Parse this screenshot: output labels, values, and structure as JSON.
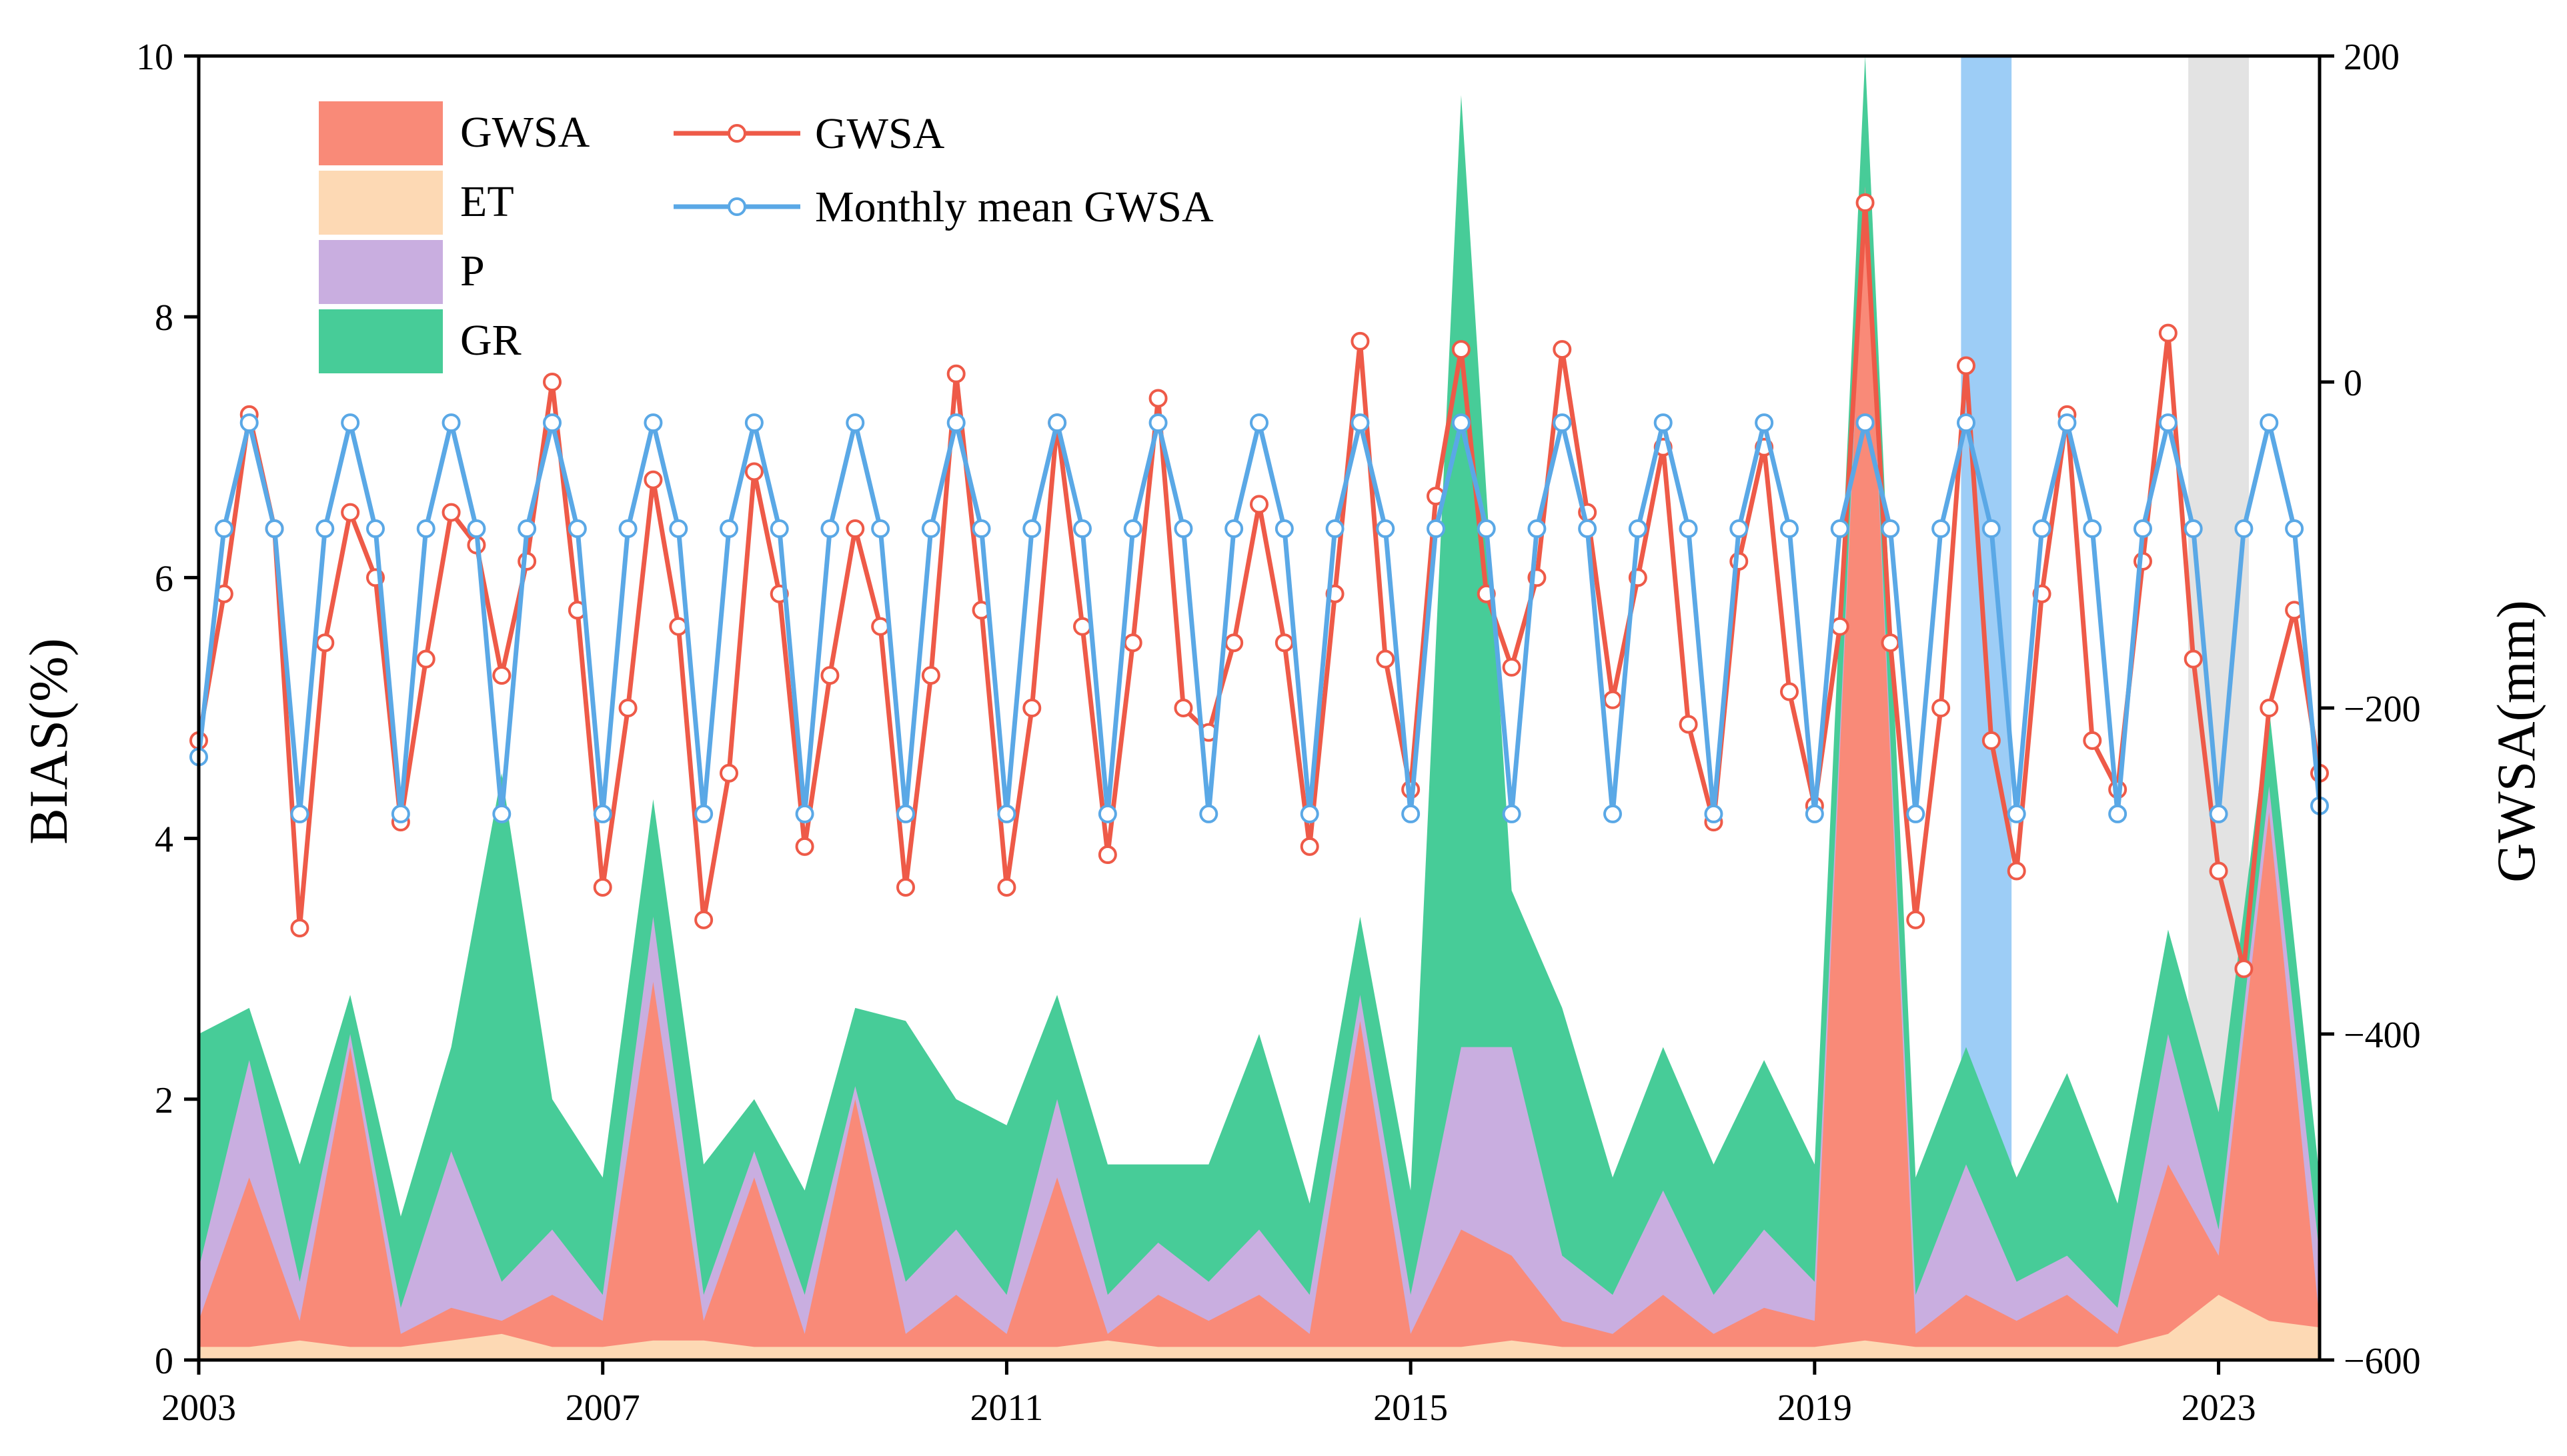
{
  "chart_data": {
    "type": "area",
    "title": "",
    "xlabel": "",
    "ylabel_left": "BIAS(%)",
    "ylabel_right": "GWSA(mm)",
    "x_range": [
      2003.0,
      2024.0
    ],
    "x_ticks": [
      2003,
      2007,
      2011,
      2015,
      2019,
      2023
    ],
    "y_left_range": [
      0,
      10
    ],
    "y_left_ticks": [
      0,
      2,
      4,
      6,
      8,
      10
    ],
    "y_right_range": [
      -600,
      200
    ],
    "y_right_ticks": [
      -600,
      -400,
      -200,
      0,
      200
    ],
    "colors": {
      "GWSA_area": "#f98a78",
      "ET_area": "#fdd9b4",
      "P_area": "#c9aee0",
      "GR_area": "#47cc98",
      "GWSA_line": "#ee5a48",
      "Monthly_line": "#5aa8e6",
      "blue_band": "#8cc4f5",
      "gray_band": "#d9d9d9"
    },
    "legend": {
      "areas": [
        "GWSA",
        "ET",
        "P",
        "GR"
      ],
      "lines": [
        "GWSA",
        "Monthly mean GWSA"
      ],
      "position": "top-left"
    },
    "highlight_bands": [
      {
        "color": "blue",
        "x_start": 2020.45,
        "x_end": 2020.95
      },
      {
        "color": "gray",
        "x_start": 2022.7,
        "x_end": 2023.3
      }
    ],
    "gwsa_monthly": {
      "x": [
        2003.0,
        2003.25,
        2003.5,
        2003.75,
        2004.0,
        2004.25,
        2004.5,
        2004.75,
        2005.0,
        2005.25,
        2005.5,
        2005.75,
        2006.0,
        2006.25,
        2006.5,
        2006.75,
        2007.0,
        2007.25,
        2007.5,
        2007.75,
        2008.0,
        2008.25,
        2008.5,
        2008.75,
        2009.0,
        2009.25,
        2009.5,
        2009.75,
        2010.0,
        2010.25,
        2010.5,
        2010.75,
        2011.0,
        2011.25,
        2011.5,
        2011.75,
        2012.0,
        2012.25,
        2012.5,
        2012.75,
        2013.0,
        2013.25,
        2013.5,
        2013.75,
        2014.0,
        2014.25,
        2014.5,
        2014.75,
        2015.0,
        2015.25,
        2015.5,
        2015.75,
        2016.0,
        2016.25,
        2016.5,
        2016.75,
        2017.0,
        2017.25,
        2017.5,
        2017.75,
        2018.0,
        2018.25,
        2018.5,
        2018.75,
        2019.0,
        2019.25,
        2019.5,
        2019.75,
        2020.0,
        2020.25,
        2020.5,
        2020.75,
        2021.0,
        2021.25,
        2021.5,
        2021.75,
        2022.0,
        2022.25,
        2022.5,
        2022.75,
        2023.0,
        2023.25,
        2023.5,
        2023.75,
        2024.0
      ],
      "y": [
        -230,
        -90,
        -25,
        -90,
        -265,
        -90,
        -25,
        -90,
        -265,
        -90,
        -25,
        -90,
        -265,
        -90,
        -25,
        -90,
        -265,
        -90,
        -25,
        -90,
        -265,
        -90,
        -25,
        -90,
        -265,
        -90,
        -25,
        -90,
        -265,
        -90,
        -25,
        -90,
        -265,
        -90,
        -25,
        -90,
        -265,
        -90,
        -25,
        -90,
        -265,
        -90,
        -25,
        -90,
        -265,
        -90,
        -25,
        -90,
        -265,
        -90,
        -25,
        -90,
        -265,
        -90,
        -25,
        -90,
        -265,
        -90,
        -25,
        -90,
        -265,
        -90,
        -25,
        -90,
        -265,
        -90,
        -25,
        -90,
        -265,
        -90,
        -25,
        -90,
        -265,
        -90,
        -25,
        -90,
        -265,
        -90,
        -25,
        -90,
        -265,
        -90,
        -25,
        -90,
        -260
      ]
    },
    "gwsa_series": {
      "x": [
        2003.0,
        2003.25,
        2003.5,
        2003.75,
        2004.0,
        2004.25,
        2004.5,
        2004.75,
        2005.0,
        2005.25,
        2005.5,
        2005.75,
        2006.0,
        2006.25,
        2006.5,
        2006.75,
        2007.0,
        2007.25,
        2007.5,
        2007.75,
        2008.0,
        2008.25,
        2008.5,
        2008.75,
        2009.0,
        2009.25,
        2009.5,
        2009.75,
        2010.0,
        2010.25,
        2010.5,
        2010.75,
        2011.0,
        2011.25,
        2011.5,
        2011.75,
        2012.0,
        2012.25,
        2012.5,
        2012.75,
        2013.0,
        2013.25,
        2013.5,
        2013.75,
        2014.0,
        2014.25,
        2014.5,
        2014.75,
        2015.0,
        2015.25,
        2015.5,
        2015.75,
        2016.0,
        2016.25,
        2016.5,
        2016.75,
        2017.0,
        2017.25,
        2017.5,
        2017.75,
        2018.0,
        2018.25,
        2018.5,
        2018.75,
        2019.0,
        2019.25,
        2019.5,
        2019.75,
        2020.0,
        2020.25,
        2020.5,
        2020.75,
        2021.0,
        2021.25,
        2021.5,
        2021.75,
        2022.0,
        2022.25,
        2022.5,
        2022.75,
        2023.0,
        2023.25,
        2023.5,
        2023.75,
        2024.0
      ],
      "y": [
        -220,
        -130,
        -20,
        -90,
        -335,
        -160,
        -80,
        -120,
        -270,
        -170,
        -80,
        -100,
        -180,
        -110,
        0,
        -140,
        -310,
        -200,
        -60,
        -150,
        -330,
        -240,
        -55,
        -130,
        -285,
        -180,
        -90,
        -150,
        -310,
        -180,
        5,
        -140,
        -310,
        -200,
        -25,
        -150,
        -290,
        -160,
        -10,
        -200,
        -215,
        -160,
        -75,
        -160,
        -285,
        -130,
        25,
        -170,
        -250,
        -70,
        20,
        -130,
        -175,
        -120,
        20,
        -80,
        -195,
        -120,
        -40,
        -210,
        -270,
        -110,
        -40,
        -190,
        -260,
        -150,
        110,
        -160,
        -330,
        -200,
        10,
        -220,
        -300,
        -130,
        -20,
        -220,
        -250,
        -110,
        30,
        -170,
        -300,
        -360,
        -200,
        -140,
        -240
      ]
    },
    "components_area_BIAS_pct": {
      "x": [
        2003.0,
        2003.5,
        2004.0,
        2004.5,
        2005.0,
        2005.5,
        2006.0,
        2006.5,
        2007.0,
        2007.5,
        2008.0,
        2008.5,
        2009.0,
        2009.5,
        2010.0,
        2010.5,
        2011.0,
        2011.5,
        2012.0,
        2012.5,
        2013.0,
        2013.5,
        2014.0,
        2014.5,
        2015.0,
        2015.5,
        2016.0,
        2016.5,
        2017.0,
        2017.5,
        2018.0,
        2018.5,
        2019.0,
        2019.5,
        2020.0,
        2020.5,
        2021.0,
        2021.5,
        2022.0,
        2022.5,
        2023.0,
        2023.5,
        2024.0
      ],
      "ET": [
        0.1,
        0.1,
        0.15,
        0.1,
        0.1,
        0.15,
        0.2,
        0.1,
        0.1,
        0.15,
        0.15,
        0.1,
        0.1,
        0.1,
        0.1,
        0.1,
        0.1,
        0.1,
        0.15,
        0.1,
        0.1,
        0.1,
        0.1,
        0.1,
        0.1,
        0.1,
        0.15,
        0.1,
        0.1,
        0.1,
        0.1,
        0.1,
        0.1,
        0.15,
        0.1,
        0.1,
        0.1,
        0.1,
        0.1,
        0.2,
        0.5,
        0.3,
        0.25
      ],
      "GWSA": [
        0.3,
        1.4,
        0.3,
        2.4,
        0.2,
        0.4,
        0.3,
        0.5,
        0.3,
        2.9,
        0.3,
        1.4,
        0.2,
        2.0,
        0.2,
        0.5,
        0.2,
        1.4,
        0.2,
        0.5,
        0.3,
        0.5,
        0.2,
        2.6,
        0.2,
        1.0,
        0.8,
        0.3,
        0.2,
        0.5,
        0.2,
        0.4,
        0.3,
        9.0,
        0.2,
        0.5,
        0.3,
        0.5,
        0.2,
        1.5,
        0.8,
        4.2,
        0.3
      ],
      "P": [
        0.7,
        2.3,
        0.6,
        2.5,
        0.4,
        1.6,
        0.6,
        1.0,
        0.5,
        3.4,
        0.5,
        1.6,
        0.5,
        2.1,
        0.6,
        1.0,
        0.5,
        2.0,
        0.5,
        0.9,
        0.6,
        1.0,
        0.5,
        2.8,
        0.5,
        2.4,
        2.4,
        0.8,
        0.5,
        1.3,
        0.5,
        1.0,
        0.6,
        9.0,
        0.5,
        1.5,
        0.6,
        0.8,
        0.4,
        2.5,
        1.0,
        4.4,
        0.8
      ],
      "GR": [
        2.5,
        2.7,
        1.5,
        2.8,
        1.1,
        2.4,
        4.5,
        2.0,
        1.4,
        4.3,
        1.5,
        2.0,
        1.3,
        2.7,
        2.6,
        2.0,
        1.8,
        2.8,
        1.5,
        1.5,
        1.5,
        2.5,
        1.2,
        3.4,
        1.3,
        9.7,
        3.6,
        2.7,
        1.4,
        2.4,
        1.5,
        2.3,
        1.5,
        10.0,
        1.4,
        2.4,
        1.4,
        2.2,
        1.2,
        3.3,
        1.9,
        5.0,
        1.4
      ]
    }
  }
}
